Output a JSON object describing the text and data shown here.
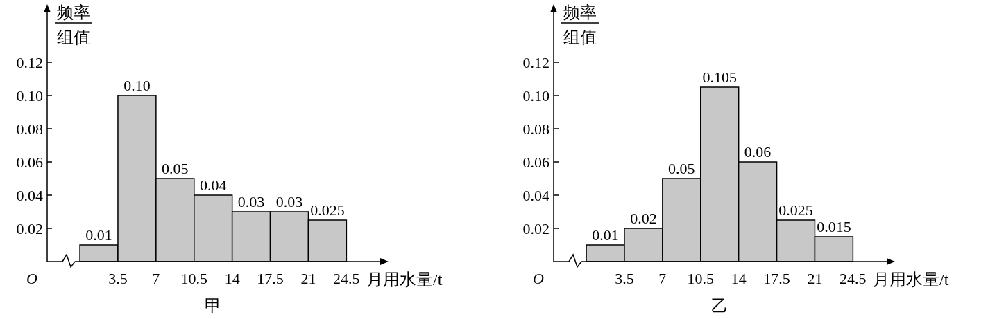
{
  "chart_data": [
    {
      "type": "histogram",
      "title": "甲",
      "xlabel": "月用水量/t",
      "ylabel": "频率组值",
      "annotations": [
        "O"
      ],
      "color": "#c8c8c8",
      "bins": [
        0,
        3.5,
        7,
        10.5,
        14,
        17.5,
        21,
        24.5
      ],
      "values": [
        0.01,
        0.1,
        0.05,
        0.04,
        0.03,
        0.03,
        0.025
      ],
      "value_labels": [
        "0.01",
        "0.10",
        "0.05",
        "0.04",
        "0.03",
        "0.03",
        "0.025"
      ],
      "xlim": [
        -3,
        27.6
      ],
      "xticks": [
        3.5,
        7,
        10.5,
        14,
        17.5,
        21,
        24.5
      ],
      "ylim": [
        0,
        0.15
      ],
      "yticks": [
        0.02,
        0.04,
        0.06,
        0.08,
        {
          "value": 0.1,
          "label": "0.10"
        },
        0.12
      ]
    },
    {
      "type": "histogram",
      "title": "乙",
      "xlabel": "月用水量/t",
      "ylabel": "频率组值",
      "annotations": [
        "O"
      ],
      "color": "#c8c8c8",
      "bins": [
        0,
        3.5,
        7,
        10.5,
        14,
        17.5,
        21,
        24.5
      ],
      "values": [
        0.01,
        0.02,
        0.05,
        0.105,
        0.06,
        0.025,
        0.015
      ],
      "value_labels": [
        "0.01",
        "0.02",
        "0.05",
        "0.105",
        "0.06",
        "0.025",
        "0.015"
      ],
      "xlim": [
        -3,
        27.6
      ],
      "xticks": [
        3.5,
        7,
        10.5,
        14,
        17.5,
        21,
        24.5
      ],
      "ylim": [
        0,
        0.15
      ],
      "yticks": [
        0.02,
        0.04,
        0.06,
        0.08,
        {
          "value": 0.1,
          "label": "0.10"
        },
        0.12
      ]
    }
  ]
}
